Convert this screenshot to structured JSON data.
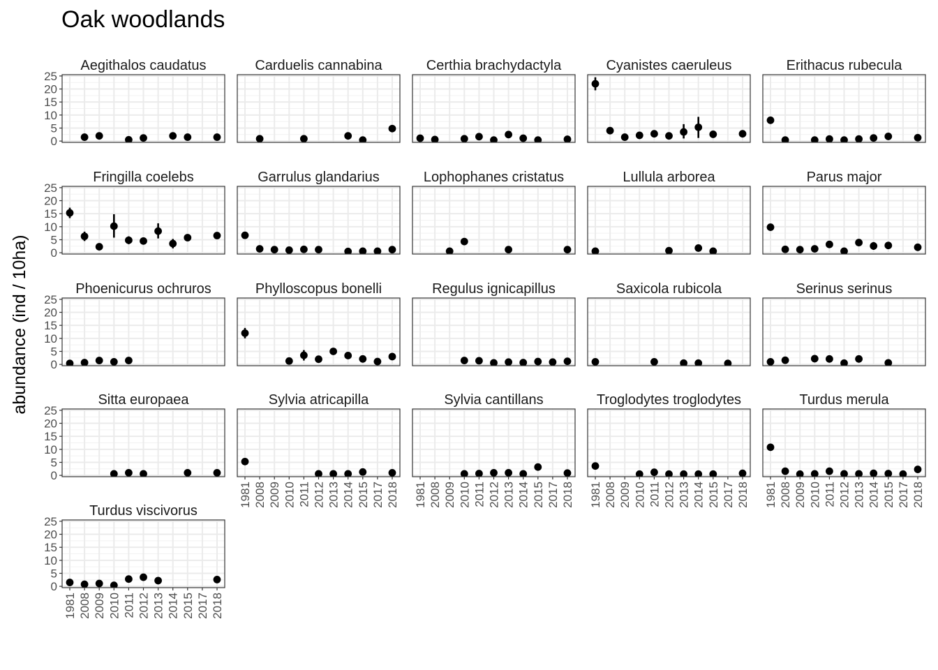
{
  "chart_data": {
    "type": "scatter",
    "title": "Oak woodlands",
    "ylabel": "abundance (ind / 10ha)",
    "xlabel": "",
    "x_categories": [
      "1981",
      "2008",
      "2009",
      "2010",
      "2011",
      "2012",
      "2013",
      "2014",
      "2015",
      "2017",
      "2018"
    ],
    "yticks": [
      0,
      5,
      10,
      15,
      20,
      25
    ],
    "ylim": [
      -0.5,
      25.5
    ],
    "grid": true,
    "panels": [
      {
        "name": "Aegithalos caudatus",
        "points": [
          {
            "x": "2008",
            "y": 1.5
          },
          {
            "x": "2009",
            "y": 2.0
          },
          {
            "x": "2011",
            "y": 0.5
          },
          {
            "x": "2012",
            "y": 1.2
          },
          {
            "x": "2014",
            "y": 2.0
          },
          {
            "x": "2015",
            "y": 1.5
          },
          {
            "x": "2018",
            "y": 1.5
          }
        ]
      },
      {
        "name": "Carduelis cannabina",
        "points": [
          {
            "x": "2008",
            "y": 0.9
          },
          {
            "x": "2011",
            "y": 0.9
          },
          {
            "x": "2014",
            "y": 2.0
          },
          {
            "x": "2015",
            "y": 0.4
          },
          {
            "x": "2018",
            "y": 4.8
          }
        ]
      },
      {
        "name": "Certhia brachydactyla",
        "points": [
          {
            "x": "1981",
            "y": 1.1
          },
          {
            "x": "2008",
            "y": 0.6
          },
          {
            "x": "2010",
            "y": 0.9
          },
          {
            "x": "2011",
            "y": 1.7
          },
          {
            "x": "2012",
            "y": 0.4
          },
          {
            "x": "2013",
            "y": 2.5
          },
          {
            "x": "2014",
            "y": 1.1
          },
          {
            "x": "2015",
            "y": 0.4
          },
          {
            "x": "2018",
            "y": 0.7
          }
        ]
      },
      {
        "name": "Cyanistes caeruleus",
        "points": [
          {
            "x": "1981",
            "y": 22.0,
            "ymin": 19.5,
            "ymax": 24.5
          },
          {
            "x": "2008",
            "y": 4.0
          },
          {
            "x": "2009",
            "y": 1.5
          },
          {
            "x": "2010",
            "y": 2.2
          },
          {
            "x": "2011",
            "y": 2.8
          },
          {
            "x": "2012",
            "y": 2.0
          },
          {
            "x": "2013",
            "y": 3.5,
            "ymin": 1.0,
            "ymax": 6.5
          },
          {
            "x": "2014",
            "y": 5.3,
            "ymin": 1.2,
            "ymax": 9.3
          },
          {
            "x": "2015",
            "y": 2.6
          },
          {
            "x": "2018",
            "y": 2.8
          }
        ]
      },
      {
        "name": "Erithacus rubecula",
        "points": [
          {
            "x": "1981",
            "y": 8.0
          },
          {
            "x": "2008",
            "y": 0.4
          },
          {
            "x": "2010",
            "y": 0.4
          },
          {
            "x": "2011",
            "y": 0.8
          },
          {
            "x": "2012",
            "y": 0.4
          },
          {
            "x": "2013",
            "y": 0.8
          },
          {
            "x": "2014",
            "y": 1.2
          },
          {
            "x": "2015",
            "y": 1.8
          },
          {
            "x": "2018",
            "y": 1.3
          }
        ]
      },
      {
        "name": "Fringilla coelebs",
        "points": [
          {
            "x": "1981",
            "y": 15.3,
            "ymin": 13.3,
            "ymax": 17.3
          },
          {
            "x": "2008",
            "y": 6.3,
            "ymin": 4.5,
            "ymax": 8.1
          },
          {
            "x": "2009",
            "y": 2.3
          },
          {
            "x": "2010",
            "y": 10.2,
            "ymin": 5.8,
            "ymax": 14.8
          },
          {
            "x": "2011",
            "y": 4.8,
            "ymin": 3.3,
            "ymax": 6.3
          },
          {
            "x": "2012",
            "y": 4.5
          },
          {
            "x": "2013",
            "y": 8.3,
            "ymin": 5.5,
            "ymax": 11.3
          },
          {
            "x": "2014",
            "y": 3.5,
            "ymin": 1.7,
            "ymax": 5.3
          },
          {
            "x": "2015",
            "y": 5.8
          },
          {
            "x": "2018",
            "y": 6.6
          }
        ]
      },
      {
        "name": "Garrulus glandarius",
        "points": [
          {
            "x": "1981",
            "y": 6.7
          },
          {
            "x": "2008",
            "y": 1.5
          },
          {
            "x": "2009",
            "y": 1.2
          },
          {
            "x": "2010",
            "y": 1.0
          },
          {
            "x": "2011",
            "y": 1.3
          },
          {
            "x": "2012",
            "y": 1.2
          },
          {
            "x": "2014",
            "y": 0.5
          },
          {
            "x": "2015",
            "y": 0.6
          },
          {
            "x": "2017",
            "y": 0.6
          },
          {
            "x": "2018",
            "y": 1.2
          }
        ]
      },
      {
        "name": "Lophophanes cristatus",
        "points": [
          {
            "x": "2009",
            "y": 0.6
          },
          {
            "x": "2010",
            "y": 4.3
          },
          {
            "x": "2013",
            "y": 1.2
          },
          {
            "x": "2018",
            "y": 1.2
          }
        ]
      },
      {
        "name": "Lullula arborea",
        "points": [
          {
            "x": "1981",
            "y": 0.6
          },
          {
            "x": "2012",
            "y": 0.8
          },
          {
            "x": "2014",
            "y": 1.8
          },
          {
            "x": "2015",
            "y": 0.6
          }
        ]
      },
      {
        "name": "Parus major",
        "points": [
          {
            "x": "1981",
            "y": 9.8
          },
          {
            "x": "2008",
            "y": 1.3
          },
          {
            "x": "2009",
            "y": 1.2
          },
          {
            "x": "2010",
            "y": 1.5
          },
          {
            "x": "2011",
            "y": 3.2
          },
          {
            "x": "2012",
            "y": 0.6
          },
          {
            "x": "2013",
            "y": 3.9
          },
          {
            "x": "2014",
            "y": 2.6,
            "ymin": 1.1,
            "ymax": 4.1
          },
          {
            "x": "2015",
            "y": 2.8
          },
          {
            "x": "2018",
            "y": 2.1
          }
        ]
      },
      {
        "name": "Phoenicurus ochruros",
        "points": [
          {
            "x": "1981",
            "y": 0.4
          },
          {
            "x": "2008",
            "y": 0.7
          },
          {
            "x": "2009",
            "y": 1.5
          },
          {
            "x": "2010",
            "y": 1.0
          },
          {
            "x": "2011",
            "y": 1.5
          }
        ]
      },
      {
        "name": "Phylloscopus bonelli",
        "points": [
          {
            "x": "1981",
            "y": 12.0,
            "ymin": 10.0,
            "ymax": 14.0
          },
          {
            "x": "2010",
            "y": 1.3
          },
          {
            "x": "2011",
            "y": 3.5,
            "ymin": 1.5,
            "ymax": 5.5
          },
          {
            "x": "2012",
            "y": 2.0
          },
          {
            "x": "2013",
            "y": 5.0
          },
          {
            "x": "2014",
            "y": 3.4
          },
          {
            "x": "2015",
            "y": 2.1
          },
          {
            "x": "2017",
            "y": 1.1
          },
          {
            "x": "2018",
            "y": 3.0
          }
        ]
      },
      {
        "name": "Regulus ignicapillus",
        "points": [
          {
            "x": "2010",
            "y": 1.5
          },
          {
            "x": "2011",
            "y": 1.4
          },
          {
            "x": "2012",
            "y": 0.6
          },
          {
            "x": "2013",
            "y": 0.9
          },
          {
            "x": "2014",
            "y": 0.7
          },
          {
            "x": "2015",
            "y": 1.1
          },
          {
            "x": "2017",
            "y": 0.9
          },
          {
            "x": "2018",
            "y": 1.2
          }
        ]
      },
      {
        "name": "Saxicola rubicola",
        "points": [
          {
            "x": "1981",
            "y": 1.0
          },
          {
            "x": "2011",
            "y": 1.0
          },
          {
            "x": "2013",
            "y": 0.5
          },
          {
            "x": "2014",
            "y": 0.5
          },
          {
            "x": "2017",
            "y": 0.4
          }
        ]
      },
      {
        "name": "Serinus serinus",
        "points": [
          {
            "x": "1981",
            "y": 1.0
          },
          {
            "x": "2008",
            "y": 1.6
          },
          {
            "x": "2010",
            "y": 2.2
          },
          {
            "x": "2011",
            "y": 2.1
          },
          {
            "x": "2012",
            "y": 0.5
          },
          {
            "x": "2013",
            "y": 2.1
          },
          {
            "x": "2015",
            "y": 0.6
          }
        ]
      },
      {
        "name": "Sitta europaea",
        "points": [
          {
            "x": "2010",
            "y": 0.6
          },
          {
            "x": "2011",
            "y": 1.0
          },
          {
            "x": "2012",
            "y": 0.6
          },
          {
            "x": "2015",
            "y": 1.0
          },
          {
            "x": "2018",
            "y": 1.0
          }
        ]
      },
      {
        "name": "Sylvia atricapilla",
        "points": [
          {
            "x": "1981",
            "y": 5.3
          },
          {
            "x": "2012",
            "y": 0.6
          },
          {
            "x": "2013",
            "y": 0.6
          },
          {
            "x": "2014",
            "y": 0.6
          },
          {
            "x": "2015",
            "y": 1.3
          },
          {
            "x": "2018",
            "y": 1.0
          }
        ]
      },
      {
        "name": "Sylvia cantillans",
        "points": [
          {
            "x": "2010",
            "y": 0.6
          },
          {
            "x": "2011",
            "y": 0.7
          },
          {
            "x": "2012",
            "y": 1.0
          },
          {
            "x": "2013",
            "y": 1.0
          },
          {
            "x": "2014",
            "y": 0.6
          },
          {
            "x": "2015",
            "y": 3.2
          },
          {
            "x": "2018",
            "y": 0.9
          }
        ]
      },
      {
        "name": "Troglodytes troglodytes",
        "points": [
          {
            "x": "1981",
            "y": 3.6
          },
          {
            "x": "2010",
            "y": 0.5
          },
          {
            "x": "2011",
            "y": 1.2
          },
          {
            "x": "2012",
            "y": 0.5
          },
          {
            "x": "2013",
            "y": 0.5
          },
          {
            "x": "2014",
            "y": 0.5
          },
          {
            "x": "2015",
            "y": 0.5
          },
          {
            "x": "2018",
            "y": 0.8
          }
        ]
      },
      {
        "name": "Turdus merula",
        "points": [
          {
            "x": "1981",
            "y": 10.8
          },
          {
            "x": "2008",
            "y": 1.6
          },
          {
            "x": "2009",
            "y": 0.5
          },
          {
            "x": "2010",
            "y": 0.6
          },
          {
            "x": "2011",
            "y": 1.6
          },
          {
            "x": "2012",
            "y": 0.6
          },
          {
            "x": "2013",
            "y": 0.6
          },
          {
            "x": "2014",
            "y": 0.8
          },
          {
            "x": "2015",
            "y": 0.7
          },
          {
            "x": "2017",
            "y": 0.5
          },
          {
            "x": "2018",
            "y": 2.3
          }
        ]
      },
      {
        "name": "Turdus viscivorus",
        "points": [
          {
            "x": "1981",
            "y": 1.5
          },
          {
            "x": "2008",
            "y": 0.8
          },
          {
            "x": "2009",
            "y": 1.1
          },
          {
            "x": "2010",
            "y": 0.4
          },
          {
            "x": "2011",
            "y": 2.8
          },
          {
            "x": "2012",
            "y": 3.5
          },
          {
            "x": "2013",
            "y": 2.2,
            "ymin": 0.9,
            "ymax": 3.5
          },
          {
            "x": "2018",
            "y": 2.6
          }
        ]
      }
    ]
  }
}
